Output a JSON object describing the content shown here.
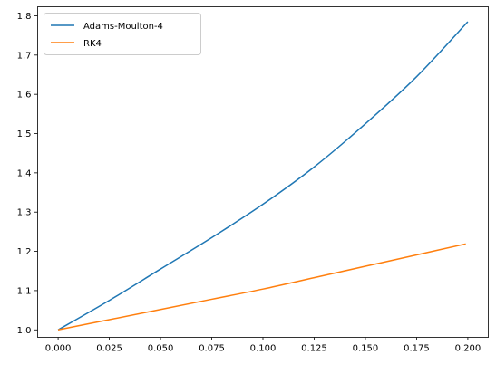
{
  "chart_data": {
    "type": "line",
    "title": "",
    "xlabel": "",
    "ylabel": "",
    "xlim": [
      -0.01,
      0.21
    ],
    "ylim": [
      0.981,
      1.823
    ],
    "xticks": [
      0.0,
      0.025,
      0.05,
      0.075,
      0.1,
      0.125,
      0.15,
      0.175,
      0.2
    ],
    "xtick_labels": [
      "0.000",
      "0.025",
      "0.050",
      "0.075",
      "0.100",
      "0.125",
      "0.150",
      "0.175",
      "0.200"
    ],
    "yticks": [
      1.0,
      1.1,
      1.2,
      1.3,
      1.4,
      1.5,
      1.6,
      1.7,
      1.8
    ],
    "ytick_labels": [
      "1.0",
      "1.1",
      "1.2",
      "1.3",
      "1.4",
      "1.5",
      "1.6",
      "1.7",
      "1.8"
    ],
    "grid": false,
    "legend": "top-left",
    "series": [
      {
        "name": "Adams-Moulton-4",
        "color": "#1f77b4",
        "x": [
          0.0,
          0.025,
          0.05,
          0.075,
          0.1,
          0.125,
          0.15,
          0.175,
          0.2
        ],
        "y": [
          1.0,
          1.075,
          1.155,
          1.235,
          1.32,
          1.415,
          1.525,
          1.645,
          1.785
        ]
      },
      {
        "name": "RK4",
        "color": "#ff7f0e",
        "x": [
          0.0,
          0.025,
          0.05,
          0.075,
          0.1,
          0.125,
          0.15,
          0.175,
          0.199
        ],
        "y": [
          1.0,
          1.026,
          1.052,
          1.078,
          1.104,
          1.133,
          1.162,
          1.191,
          1.219
        ]
      }
    ]
  }
}
